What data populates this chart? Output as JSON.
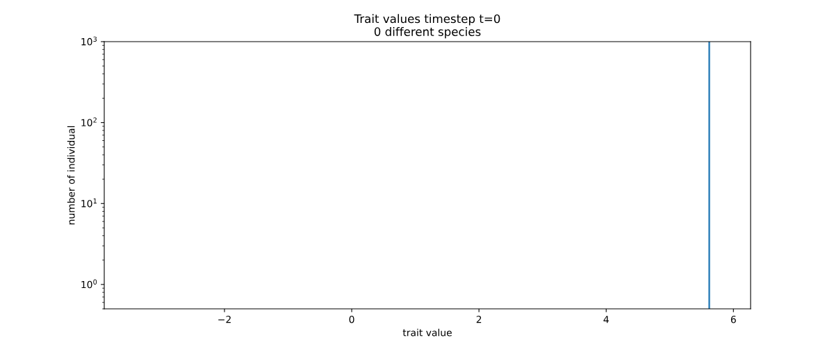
{
  "chart_data": {
    "type": "histogram",
    "title": "Trait values timestep t=0\n0 different species",
    "xlabel": "trait value",
    "ylabel": "number of individual",
    "bins": [
      5.615,
      5.625
    ],
    "values": [
      1000
    ],
    "color": "#1f77b4",
    "log": "y",
    "xlim": [
      -3.89,
      6.27
    ],
    "xticks": [
      -2,
      0,
      2,
      4,
      6
    ],
    "ylim": [
      0.5,
      1000
    ],
    "yticks": [
      {
        "value": 1,
        "label": "10$^{0}$"
      },
      {
        "value": 10,
        "label": "10$^{1}$"
      },
      {
        "value": 100,
        "label": "10$^{2}$"
      },
      {
        "value": 1000,
        "label": "10$^{3}$"
      }
    ],
    "grid": false,
    "legend": false
  }
}
